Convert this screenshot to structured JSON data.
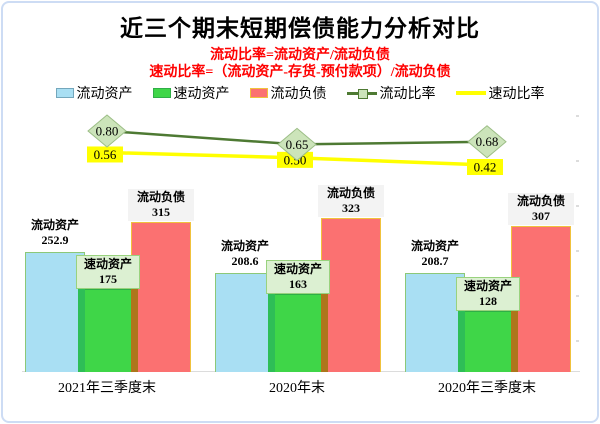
{
  "page": {
    "title": "近三个期末短期偿债能力分析对比",
    "formula_line1": "流动比率=流动资产/流动负债",
    "formula_line2": "速动比率=（流动资产-存货-预付款项）/流动负债"
  },
  "legend": {
    "position": "top",
    "items": [
      {
        "label": "流动资产",
        "marker": "bar-swatch"
      },
      {
        "label": "速动资产",
        "marker": "bar-swatch"
      },
      {
        "label": "流动负债",
        "marker": "bar-swatch"
      },
      {
        "label": "流动比率",
        "marker": "line-with-diamond"
      },
      {
        "label": "速动比率",
        "marker": "line"
      }
    ]
  },
  "colors": {
    "formula_text": "#ff0000",
    "current_assets_fill": "#a9dff3",
    "current_assets_border": "#8cc878",
    "quick_assets_fill": "#3fd648",
    "quick_assets_border": "#2fae47",
    "current_liabilities_fill": "#fb7171",
    "current_liabilities_border": "#f0c23c",
    "overlap_green_blue": "#2ebe57",
    "overlap_green_red": "#ad761b",
    "quick_label_bg": "#dcf0d2",
    "quick_label_border": "#99d27e",
    "liability_label_bg": "#f3f3f3",
    "current_ratio_line": "#4e7a33",
    "diamond_fill": "#cce4ba",
    "diamond_border": "#9cbe86",
    "quick_ratio_line": "#ffff00",
    "legend_blue_border": "#74a7bc",
    "frame_border": "#cddcf4"
  },
  "chart_data": {
    "type": "bar",
    "subtype": "combo bar + line (two overlaid line series with data labels)",
    "title": "近三个期末短期偿债能力分析对比",
    "categories": [
      "2021年三季度末",
      "2020年末",
      "2020年三季度末"
    ],
    "bar_series": [
      {
        "name": "流动资产",
        "values": [
          252.9,
          208.6,
          208.7
        ]
      },
      {
        "name": "速动资产",
        "values": [
          175,
          163,
          128
        ]
      },
      {
        "name": "流动负债",
        "values": [
          315,
          323,
          307
        ]
      }
    ],
    "line_series": [
      {
        "name": "流动比率",
        "values": [
          0.8,
          0.65,
          0.68
        ],
        "labels": [
          "0.80",
          "0.65",
          "0.68"
        ]
      },
      {
        "name": "速动比率",
        "values": [
          0.56,
          0.5,
          0.42
        ],
        "labels": [
          "0.56",
          "0.50",
          "0.42"
        ]
      }
    ],
    "bar_axis": {
      "min": 0,
      "max": 400,
      "labels_visible": false
    },
    "line_axis": {
      "labels_visible": false
    },
    "grid": false,
    "xlabel": "",
    "ylabel": ""
  }
}
